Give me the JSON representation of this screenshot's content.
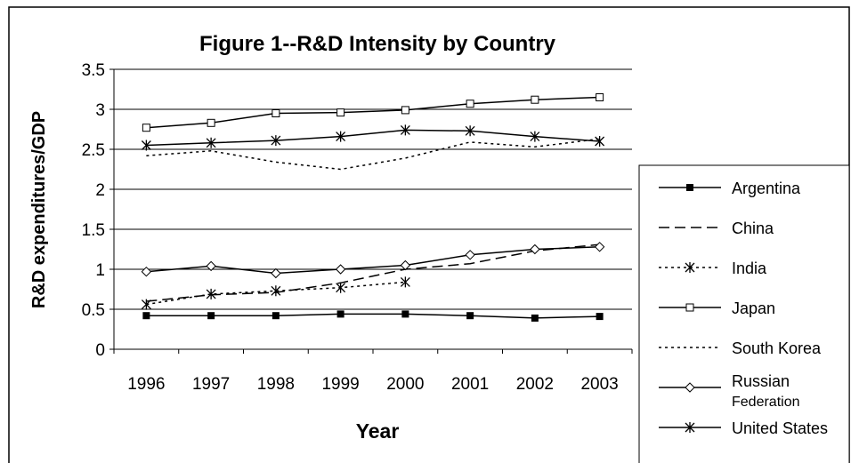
{
  "chart_data": {
    "type": "line",
    "title": "Figure 1--R&D Intensity by Country",
    "x_label": "Year",
    "y_label": "R&D expenditures/GDP",
    "categories": [
      "1996",
      "1997",
      "1998",
      "1999",
      "2000",
      "2001",
      "2002",
      "2003"
    ],
    "ylim": [
      0,
      3.5
    ],
    "yticks": [
      0,
      0.5,
      1,
      1.5,
      2,
      2.5,
      3,
      3.5
    ],
    "grid": true,
    "legend": "right",
    "series": [
      {
        "name": "Argentina",
        "color": "#000000",
        "dash": "solid",
        "marker": "filled-square",
        "values": [
          0.42,
          0.42,
          0.42,
          0.44,
          0.44,
          0.42,
          0.39,
          0.41
        ]
      },
      {
        "name": "China",
        "color": "#000000",
        "dash": "dashed",
        "marker": "none",
        "values": [
          0.6,
          0.68,
          0.71,
          0.83,
          1.0,
          1.07,
          1.23,
          1.31
        ]
      },
      {
        "name": "India",
        "color": "#000000",
        "dash": "dotted",
        "marker": "asterisk",
        "values": [
          0.56,
          0.69,
          0.73,
          0.77,
          0.84,
          null,
          null,
          null
        ]
      },
      {
        "name": "Japan",
        "color": "#000000",
        "dash": "solid",
        "marker": "open-square",
        "values": [
          2.77,
          2.83,
          2.95,
          2.96,
          2.99,
          3.07,
          3.12,
          3.15
        ]
      },
      {
        "name": "South Korea",
        "color": "#000000",
        "dash": "dotted",
        "marker": "none",
        "values": [
          2.42,
          2.48,
          2.34,
          2.25,
          2.39,
          2.59,
          2.53,
          2.63
        ]
      },
      {
        "name": "Russian Federation",
        "color": "#000000",
        "dash": "solid",
        "marker": "open-diamond",
        "values": [
          0.97,
          1.04,
          0.95,
          1.0,
          1.05,
          1.18,
          1.25,
          1.28
        ]
      },
      {
        "name": "United States",
        "color": "#000000",
        "dash": "solid",
        "marker": "asterisk",
        "values": [
          2.55,
          2.58,
          2.61,
          2.66,
          2.74,
          2.73,
          2.66,
          2.6
        ]
      }
    ]
  }
}
